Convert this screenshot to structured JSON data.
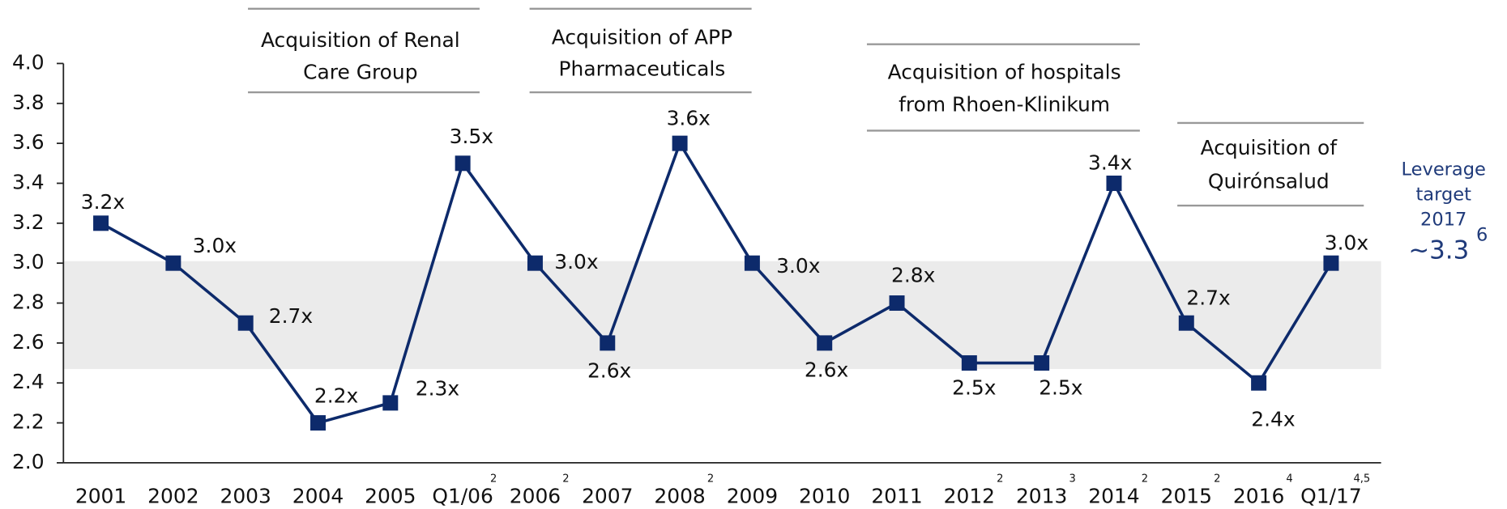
{
  "chart_data": {
    "type": "line",
    "categories": [
      "2001",
      "2002",
      "2003",
      "2004",
      "2005",
      "Q1/06",
      "2006",
      "2007",
      "2008",
      "2009",
      "2010",
      "2011",
      "2012",
      "2013",
      "2014",
      "2015",
      "2016",
      "Q1/17"
    ],
    "footnotes": [
      null,
      null,
      null,
      null,
      null,
      "2",
      "2",
      null,
      "2",
      null,
      null,
      null,
      "2",
      "3",
      "2",
      "2",
      "4",
      "4,5"
    ],
    "values": [
      3.2,
      3.0,
      2.7,
      2.2,
      2.3,
      3.5,
      3.0,
      2.6,
      3.6,
      3.0,
      2.6,
      2.8,
      2.5,
      2.5,
      3.4,
      2.7,
      2.4,
      3.0
    ],
    "value_labels": [
      "3.2x",
      "3.0x",
      "2.7x",
      "2.2x",
      "2.3x",
      "3.5x",
      "3.0x",
      "2.6x",
      "3.6x",
      "3.0x",
      "2.6x",
      "2.8x",
      "2.5x",
      "2.5x",
      "3.4x",
      "2.7x",
      "2.4x",
      "3.0x"
    ],
    "color": "#0d2a6b",
    "ylim": [
      2.0,
      4.0
    ],
    "yticks": [
      {
        "value": 2.0,
        "label": "2.0"
      },
      {
        "value": 2.2,
        "label": "2.2"
      },
      {
        "value": 2.4,
        "label": "2.4"
      },
      {
        "value": 2.6,
        "label": "2.6"
      },
      {
        "value": 2.8,
        "label": "2.8"
      },
      {
        "value": 3.0,
        "label": "3.0"
      },
      {
        "value": 3.2,
        "label": "3.2"
      },
      {
        "value": 3.4,
        "label": "3.4"
      },
      {
        "value": 3.6,
        "label": "3.6"
      },
      {
        "value": 3.8,
        "label": "3.8"
      },
      {
        "value": 4.0,
        "label": "4.0"
      }
    ],
    "band": [
      2.47,
      3.01
    ],
    "band_color": "#ebebeb",
    "annotations": [
      [
        "Acquisition of Renal",
        "Care Group"
      ],
      [
        "Acquisition of APP",
        "Pharmaceuticals"
      ],
      [
        "Acquisition of hospitals",
        "from Rhoen-Klinikum"
      ],
      [
        "Acquisition of",
        "Quirónsalud"
      ]
    ],
    "side_note": {
      "lines": [
        "Leverage",
        "target",
        "2017"
      ],
      "value": "~3.3",
      "footnote": "6"
    }
  }
}
